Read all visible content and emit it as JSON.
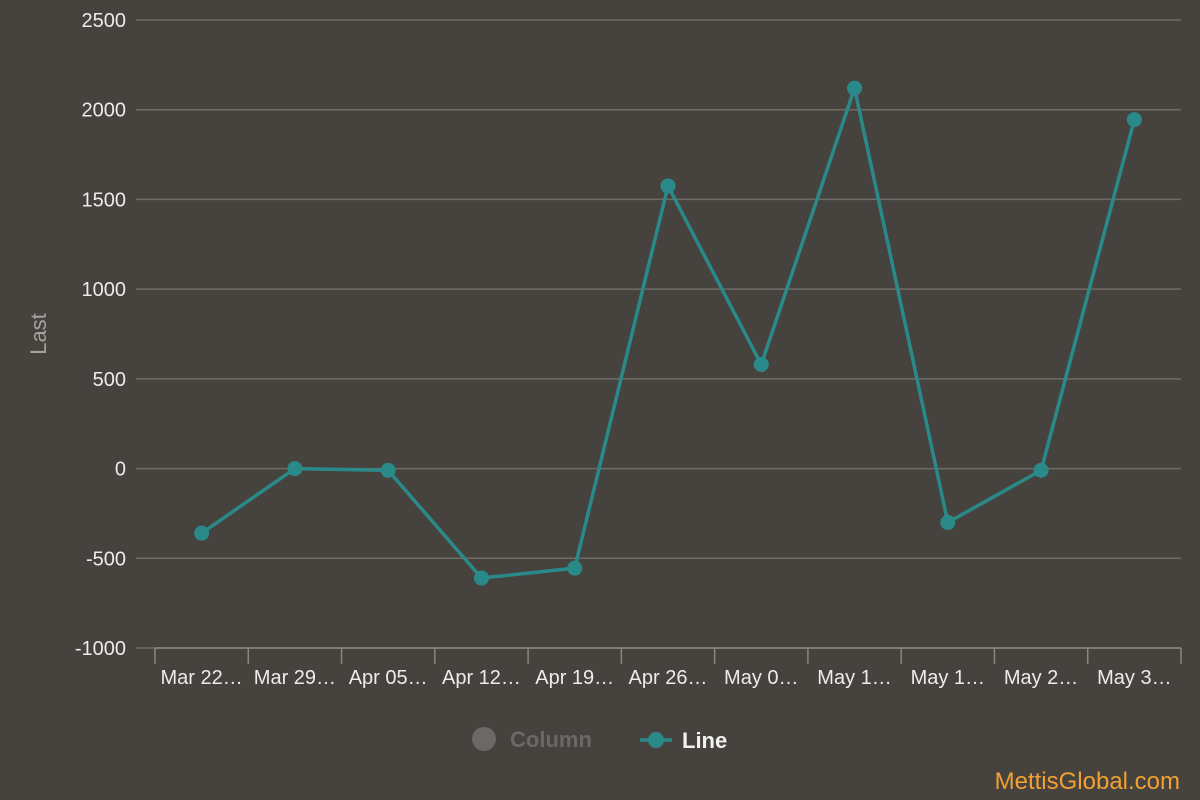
{
  "chart_data": {
    "type": "line",
    "categories": [
      "Mar 22…",
      "Mar 29…",
      "Apr 05…",
      "Apr 12…",
      "Apr 19…",
      "Apr 26…",
      "May 0…",
      "May 1…",
      "May 1…",
      "May 2…",
      "May 3…"
    ],
    "series": [
      {
        "name": "Line",
        "color": "#2a8a8a",
        "values": [
          -360,
          0,
          -10,
          -610,
          -555,
          1575,
          580,
          2120,
          -300,
          -10,
          1945
        ]
      }
    ],
    "ylabel": "Last",
    "ylim": [
      -1000,
      2500
    ],
    "yticks": [
      -1000,
      -500,
      0,
      500,
      1000,
      1500,
      2000,
      2500
    ],
    "grid": true,
    "legend": {
      "placement": "bottom-center",
      "items": [
        {
          "label": "Column",
          "state": "hidden",
          "color": "#6b6865"
        },
        {
          "label": "Line",
          "state": "visible",
          "color": "#2a8a8a"
        }
      ]
    },
    "credit": "MettisGlobal.com"
  }
}
